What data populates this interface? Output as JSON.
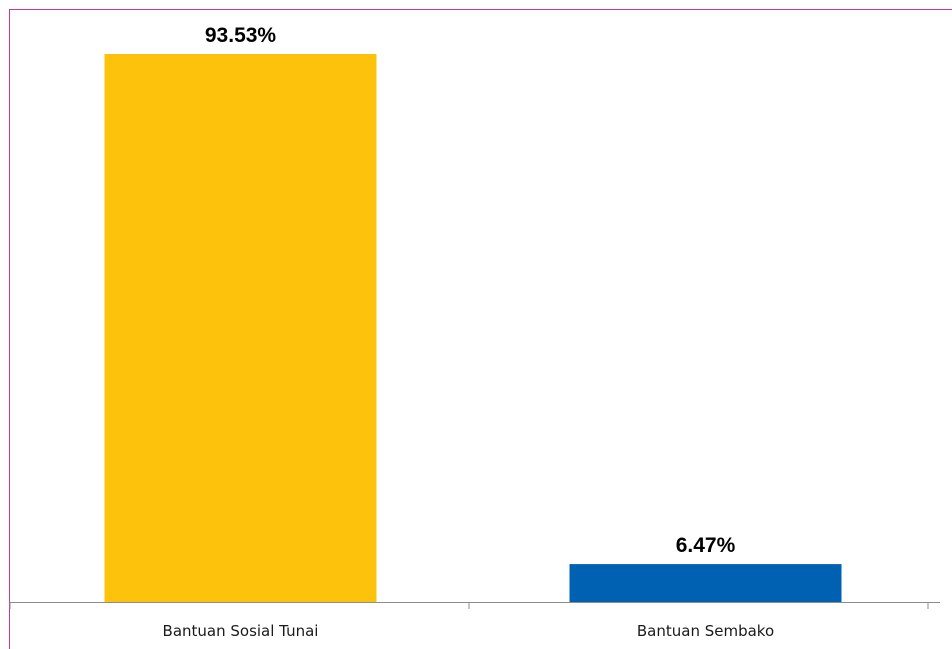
{
  "chart_data": {
    "type": "bar",
    "categories": [
      "Bantuan Sosial Tunai",
      "Bantuan Sembako"
    ],
    "values": [
      93.53,
      6.47
    ],
    "data_labels": [
      "93.53%",
      "6.47%"
    ],
    "colors": [
      "#FDC20B",
      "#0061B2"
    ],
    "title": "",
    "xlabel": "",
    "ylabel": "",
    "ylim": [
      0,
      100
    ],
    "grid": false,
    "legend": "none"
  }
}
